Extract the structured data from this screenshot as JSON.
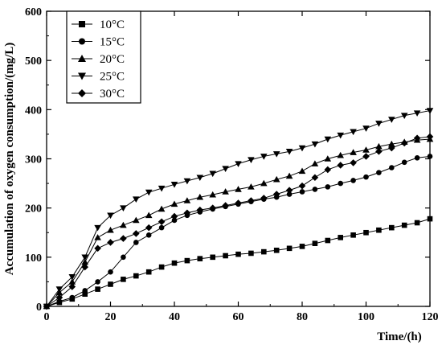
{
  "chart_data": {
    "type": "line",
    "xlabel": "Time/(h)",
    "ylabel": "Accumulation of oxygen consumption/(mg/L)",
    "xlim": [
      0,
      120
    ],
    "ylim": [
      0,
      600
    ],
    "xticks": [
      0,
      20,
      40,
      60,
      80,
      100,
      120
    ],
    "yticks": [
      0,
      100,
      200,
      300,
      400,
      500,
      600
    ],
    "grid": false,
    "legend_position": "top-left",
    "x": [
      0,
      4,
      8,
      12,
      16,
      20,
      24,
      28,
      32,
      36,
      40,
      44,
      48,
      52,
      56,
      60,
      64,
      68,
      72,
      76,
      80,
      84,
      88,
      92,
      96,
      100,
      104,
      108,
      112,
      116,
      120
    ],
    "series": [
      {
        "name": "10°C",
        "marker": "square",
        "values": [
          0,
          8,
          15,
          25,
          35,
          45,
          55,
          62,
          70,
          80,
          88,
          93,
          97,
          100,
          103,
          106,
          108,
          111,
          114,
          118,
          122,
          128,
          134,
          140,
          145,
          150,
          155,
          160,
          165,
          170,
          178
        ]
      },
      {
        "name": "15°C",
        "marker": "circle",
        "values": [
          0,
          10,
          18,
          32,
          50,
          70,
          100,
          130,
          145,
          160,
          175,
          185,
          192,
          198,
          203,
          208,
          213,
          218,
          222,
          228,
          233,
          238,
          243,
          250,
          256,
          263,
          272,
          282,
          293,
          302,
          305
        ]
      },
      {
        "name": "20°C",
        "marker": "triangle-up",
        "values": [
          0,
          28,
          50,
          90,
          140,
          155,
          165,
          175,
          185,
          198,
          208,
          215,
          222,
          227,
          233,
          238,
          243,
          250,
          258,
          265,
          275,
          290,
          300,
          307,
          313,
          318,
          325,
          330,
          334,
          338,
          340
        ]
      },
      {
        "name": "25°C",
        "marker": "triangle-down",
        "values": [
          0,
          35,
          60,
          100,
          160,
          185,
          200,
          218,
          232,
          240,
          248,
          255,
          262,
          270,
          280,
          290,
          298,
          305,
          310,
          315,
          322,
          330,
          340,
          348,
          355,
          362,
          372,
          380,
          388,
          393,
          398
        ]
      },
      {
        "name": "30°C",
        "marker": "diamond",
        "values": [
          0,
          18,
          40,
          80,
          118,
          130,
          138,
          148,
          160,
          172,
          183,
          190,
          196,
          200,
          205,
          210,
          215,
          220,
          228,
          236,
          245,
          262,
          278,
          287,
          292,
          305,
          315,
          322,
          332,
          342,
          345
        ]
      }
    ]
  }
}
